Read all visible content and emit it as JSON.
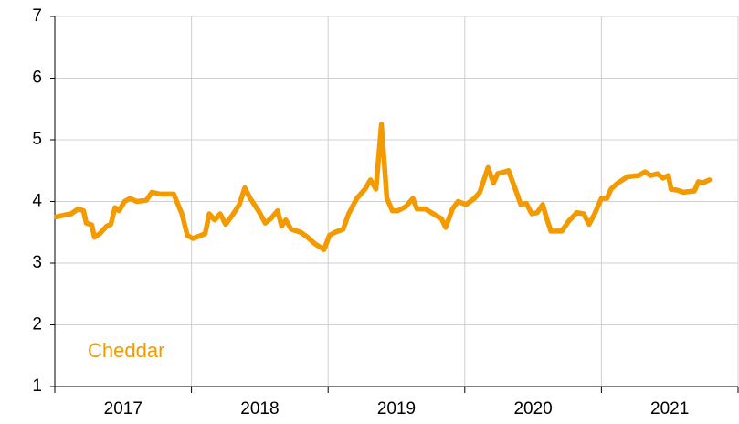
{
  "chart_data": {
    "type": "line",
    "categories": [
      "2017",
      "2018",
      "2019",
      "2020",
      "2021"
    ],
    "xlim": [
      2017,
      2022
    ],
    "ylim": [
      1,
      7
    ],
    "yticks": [
      1,
      2,
      3,
      4,
      5,
      6,
      7
    ],
    "grid": true,
    "series": [
      {
        "name": "Cheddar",
        "color": "#f39a00",
        "x": [
          2017.01,
          2017.07,
          2017.12,
          2017.17,
          2017.21,
          2017.23,
          2017.27,
          2017.29,
          2017.33,
          2017.38,
          2017.41,
          2017.44,
          2017.47,
          2017.51,
          2017.55,
          2017.6,
          2017.67,
          2017.71,
          2017.77,
          2017.87,
          2017.93,
          2017.97,
          2018.01,
          2018.07,
          2018.1,
          2018.13,
          2018.17,
          2018.21,
          2018.25,
          2018.3,
          2018.35,
          2018.39,
          2018.43,
          2018.49,
          2018.54,
          2018.58,
          2018.63,
          2018.66,
          2018.69,
          2018.73,
          2018.8,
          2018.85,
          2018.9,
          2018.97,
          2019.01,
          2019.05,
          2019.11,
          2019.15,
          2019.21,
          2019.27,
          2019.31,
          2019.35,
          2019.39,
          2019.43,
          2019.47,
          2019.51,
          2019.57,
          2019.62,
          2019.65,
          2019.71,
          2019.77,
          2019.83,
          2019.86,
          2019.91,
          2019.95,
          2020.01,
          2020.07,
          2020.11,
          2020.17,
          2020.21,
          2020.24,
          2020.29,
          2020.32,
          2020.37,
          2020.41,
          2020.45,
          2020.49,
          2020.53,
          2020.57,
          2020.6,
          2020.63,
          2020.71,
          2020.76,
          2020.82,
          2020.87,
          2020.91,
          2020.95,
          2021.0,
          2021.04,
          2021.07,
          2021.12,
          2021.19,
          2021.27,
          2021.32,
          2021.36,
          2021.41,
          2021.45,
          2021.49,
          2021.51,
          2021.56,
          2021.6,
          2021.68,
          2021.71,
          2021.74,
          2021.79
        ],
        "values": [
          3.75,
          3.78,
          3.8,
          3.88,
          3.85,
          3.65,
          3.62,
          3.42,
          3.48,
          3.6,
          3.63,
          3.9,
          3.85,
          4.0,
          4.05,
          4.0,
          4.02,
          4.15,
          4.12,
          4.12,
          3.8,
          3.45,
          3.4,
          3.45,
          3.48,
          3.8,
          3.7,
          3.8,
          3.63,
          3.78,
          3.95,
          4.22,
          4.05,
          3.85,
          3.65,
          3.72,
          3.85,
          3.6,
          3.7,
          3.55,
          3.5,
          3.42,
          3.32,
          3.22,
          3.45,
          3.5,
          3.55,
          3.8,
          4.05,
          4.2,
          4.35,
          4.2,
          5.25,
          4.05,
          3.85,
          3.85,
          3.92,
          4.05,
          3.88,
          3.88,
          3.8,
          3.72,
          3.58,
          3.88,
          4.0,
          3.95,
          4.05,
          4.15,
          4.55,
          4.3,
          4.45,
          4.48,
          4.5,
          4.2,
          3.95,
          3.97,
          3.8,
          3.82,
          3.95,
          3.72,
          3.52,
          3.52,
          3.68,
          3.82,
          3.8,
          3.63,
          3.8,
          4.05,
          4.05,
          4.2,
          4.3,
          4.4,
          4.42,
          4.48,
          4.42,
          4.45,
          4.38,
          4.42,
          4.2,
          4.18,
          4.15,
          4.17,
          4.32,
          4.3,
          4.35
        ]
      }
    ]
  }
}
